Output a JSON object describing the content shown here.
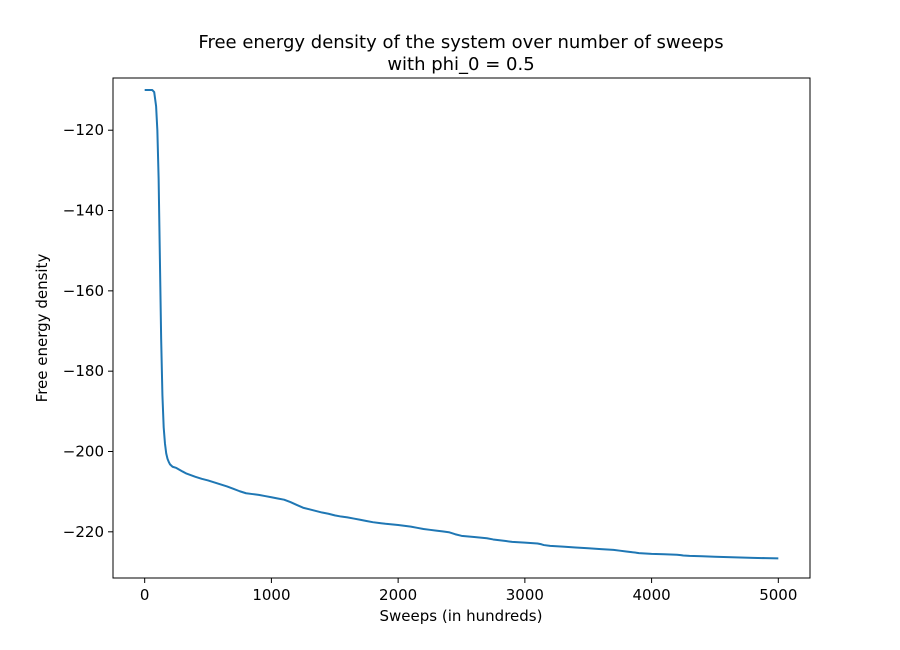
{
  "chart_data": {
    "type": "line",
    "title": "Free energy density of the system over number of sweeps",
    "subtitle": "with phi_0 = 0.5",
    "xlabel": "Sweeps (in hundreds)",
    "ylabel": "Free energy density",
    "xlim": [
      -250,
      5250
    ],
    "ylim": [
      -231.5,
      -107
    ],
    "x_ticks": [
      0,
      1000,
      2000,
      3000,
      4000,
      5000
    ],
    "x_tick_labels": [
      "0",
      "1000",
      "2000",
      "3000",
      "4000",
      "5000"
    ],
    "y_ticks": [
      -120,
      -140,
      -160,
      -180,
      -200,
      -220
    ],
    "y_tick_labels": [
      "−120",
      "−140",
      "−160",
      "−180",
      "−200",
      "−220"
    ],
    "grid": false,
    "series": [
      {
        "color": "#1f77b4",
        "x": [
          0,
          60,
          75,
          90,
          100,
          110,
          120,
          130,
          140,
          150,
          160,
          170,
          180,
          190,
          200,
          220,
          250,
          300,
          330,
          400,
          450,
          500,
          550,
          600,
          650,
          700,
          750,
          800,
          850,
          900,
          950,
          1000,
          1050,
          1100,
          1150,
          1200,
          1250,
          1300,
          1350,
          1400,
          1450,
          1500,
          1550,
          1600,
          1650,
          1700,
          1750,
          1800,
          1850,
          1900,
          2000,
          2100,
          2150,
          2200,
          2250,
          2300,
          2350,
          2400,
          2450,
          2500,
          2600,
          2700,
          2750,
          2800,
          2850,
          2900,
          3000,
          3100,
          3130,
          3150,
          3200,
          3300,
          3400,
          3500,
          3600,
          3700,
          3750,
          3800,
          3850,
          3880,
          3900,
          4000,
          4100,
          4200,
          4230,
          4250,
          4300,
          4400,
          4500,
          4600,
          4700,
          4800,
          4900,
          5000
        ],
        "y": [
          -110,
          -110,
          -110.5,
          -114,
          -120,
          -132,
          -152,
          -172,
          -186,
          -194,
          -198,
          -200.5,
          -201.8,
          -202.6,
          -203.2,
          -203.8,
          -204.1,
          -205,
          -205.5,
          -206.3,
          -206.8,
          -207.2,
          -207.7,
          -208.2,
          -208.7,
          -209.3,
          -209.9,
          -210.4,
          -210.6,
          -210.8,
          -211.1,
          -211.4,
          -211.7,
          -212,
          -212.6,
          -213.3,
          -214,
          -214.4,
          -214.8,
          -215.2,
          -215.5,
          -215.9,
          -216.2,
          -216.4,
          -216.7,
          -217,
          -217.3,
          -217.6,
          -217.8,
          -218,
          -218.3,
          -218.7,
          -219,
          -219.3,
          -219.5,
          -219.7,
          -219.9,
          -220.1,
          -220.6,
          -221,
          -221.3,
          -221.6,
          -221.9,
          -222.1,
          -222.3,
          -222.5,
          -222.7,
          -222.9,
          -223.1,
          -223.3,
          -223.5,
          -223.7,
          -223.9,
          -224.1,
          -224.3,
          -224.5,
          -224.7,
          -224.9,
          -225.1,
          -225.2,
          -225.3,
          -225.5,
          -225.6,
          -225.7,
          -225.8,
          -225.9,
          -226,
          -226.1,
          -226.2,
          -226.3,
          -226.4,
          -226.5,
          -226.55,
          -226.6
        ]
      }
    ]
  }
}
